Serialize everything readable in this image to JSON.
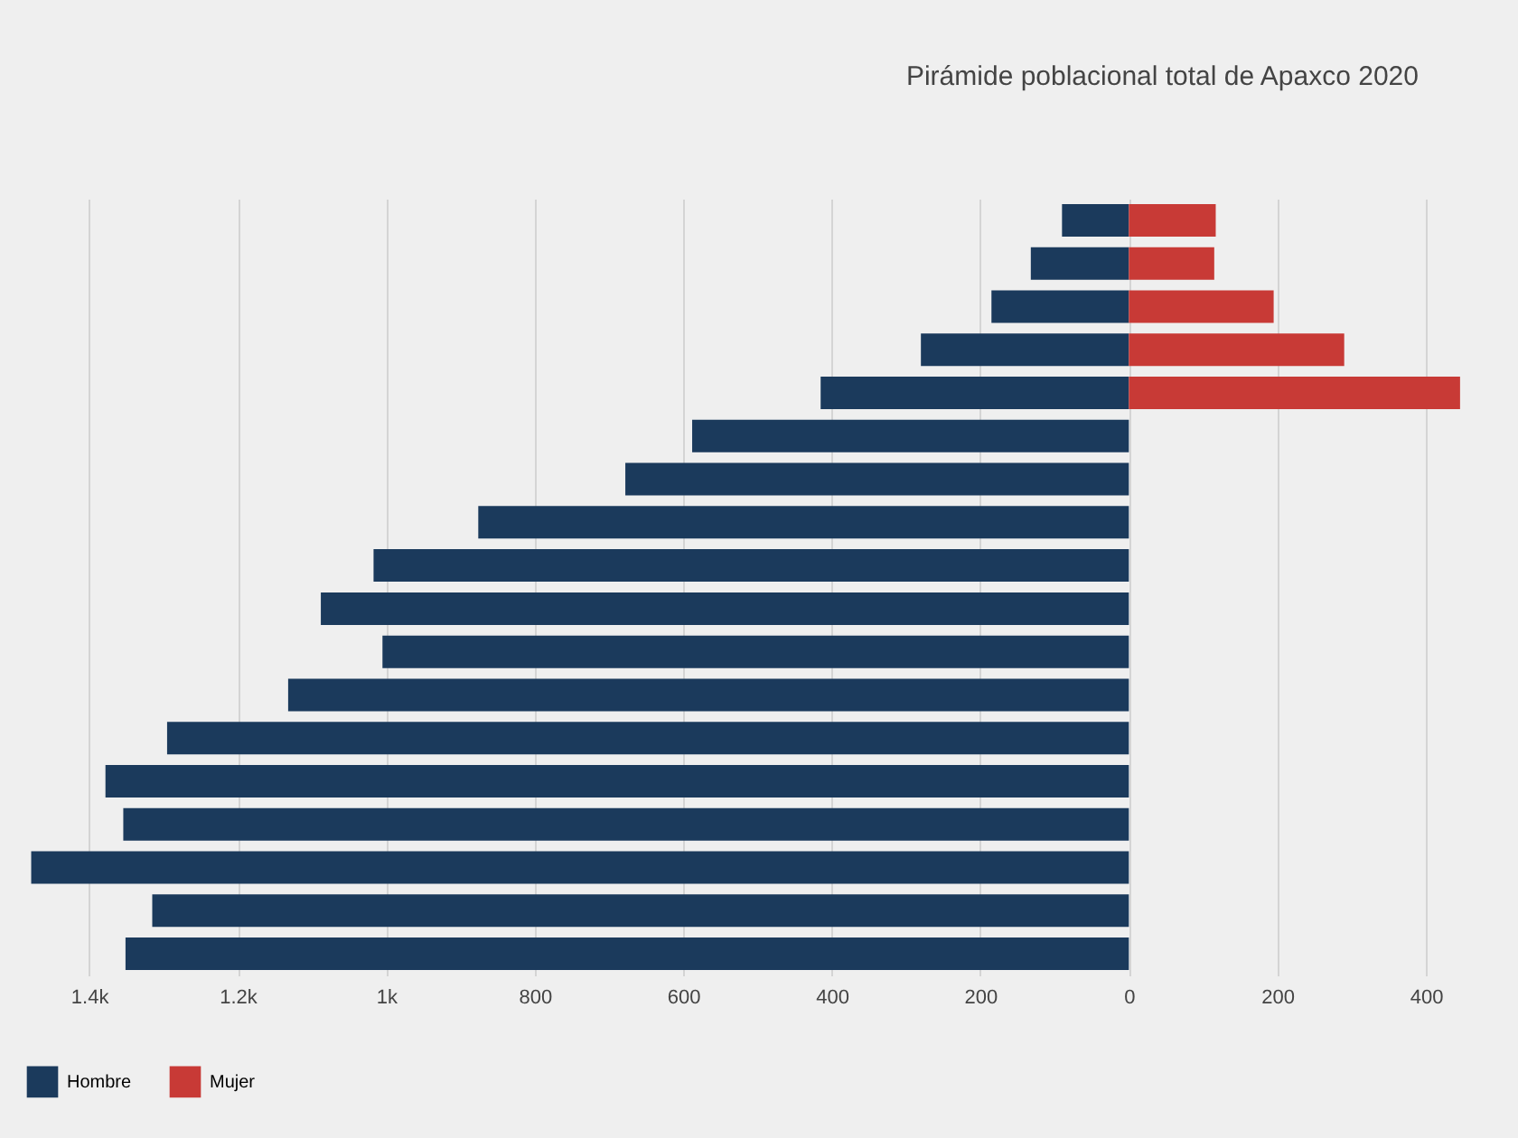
{
  "chart_data": {
    "type": "bar",
    "orientation": "horizontal",
    "title": "Pirámide poblacional total de Apaxco 2020",
    "categories": [
      null,
      null,
      null,
      null,
      null,
      null,
      null,
      null,
      null,
      null,
      null,
      null,
      null,
      null,
      null,
      null,
      null,
      null
    ],
    "series": [
      {
        "name": "Hombre",
        "color": "#1b3a5c",
        "values": [
          -90,
          -132,
          -185,
          -280,
          -415,
          -588,
          -678,
          -876,
          -1017,
          -1088,
          -1005,
          -1132,
          -1295,
          -1378,
          -1354,
          -1478,
          -1315,
          -1351
        ]
      },
      {
        "name": "Mujer",
        "color": "#c83a36",
        "values": [
          117,
          115,
          195,
          290,
          446,
          null,
          null,
          null,
          null,
          null,
          null,
          null,
          null,
          null,
          null,
          null,
          null,
          null
        ]
      }
    ],
    "xlim": [
      -1520,
      524
    ],
    "xticks": [
      {
        "value": -1400,
        "label": "1.4k"
      },
      {
        "value": -1200,
        "label": "1.2k"
      },
      {
        "value": -1000,
        "label": "1k"
      },
      {
        "value": -800,
        "label": "800"
      },
      {
        "value": -600,
        "label": "600"
      },
      {
        "value": -400,
        "label": "400"
      },
      {
        "value": -200,
        "label": "200"
      },
      0,
      200,
      400
    ],
    "grid": "x",
    "legend": "bottom",
    "tick_labels": "x"
  }
}
